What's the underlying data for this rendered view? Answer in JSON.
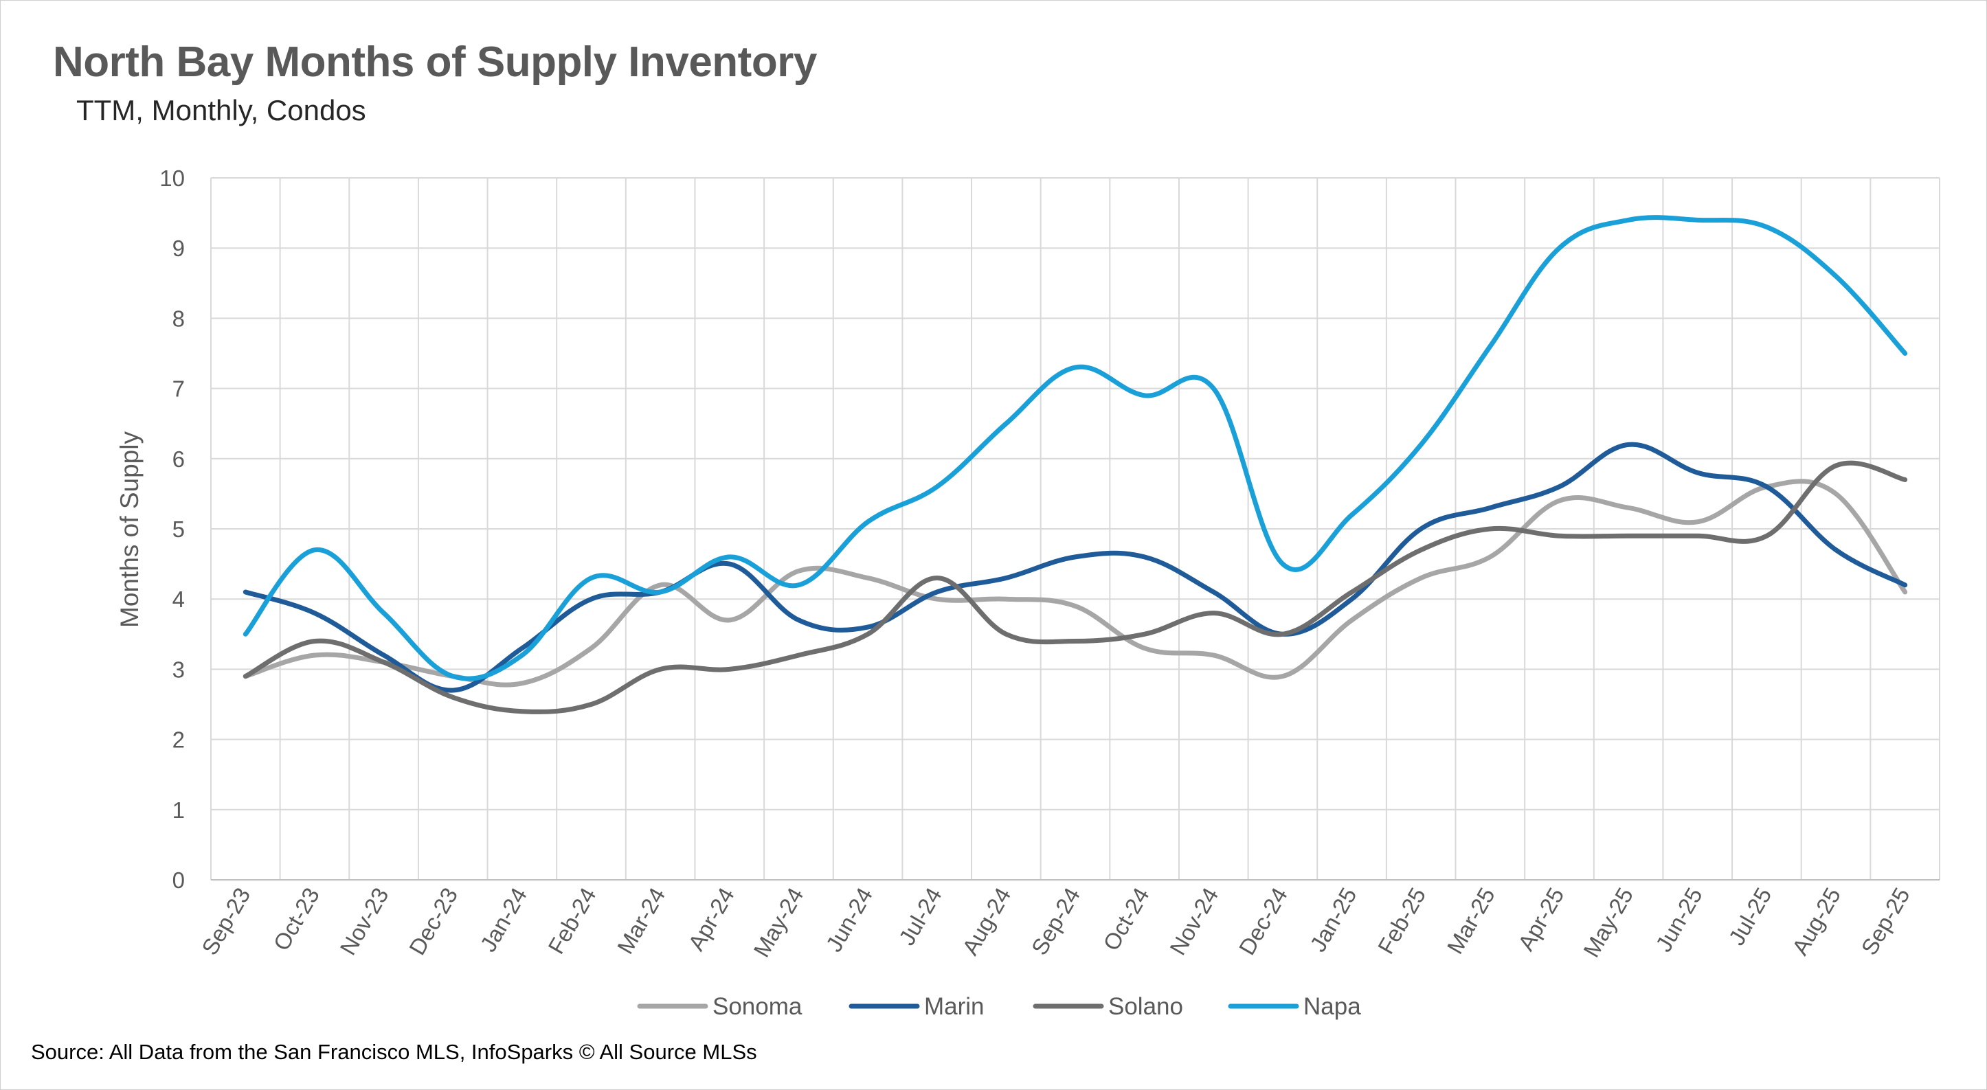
{
  "chart_data": {
    "type": "line",
    "title": "North Bay Months of Supply Inventory",
    "subtitle": "TTM, Monthly, Condos",
    "ylabel": "Months of Supply",
    "xlabel": "",
    "ylim": [
      0,
      10
    ],
    "yticks": [
      "0",
      "1",
      "2",
      "3",
      "4",
      "5",
      "6",
      "7",
      "8",
      "9",
      "10"
    ],
    "grid": true,
    "legend_position": "bottom",
    "categories": [
      "Sep-23",
      "Oct-23",
      "Nov-23",
      "Dec-23",
      "Jan-24",
      "Feb-24",
      "Mar-24",
      "Apr-24",
      "May-24",
      "Jun-24",
      "Jul-24",
      "Aug-24",
      "Sep-24",
      "Oct-24",
      "Nov-24",
      "Dec-24",
      "Jan-25",
      "Feb-25",
      "Mar-25",
      "Apr-25",
      "May-25",
      "Jun-25",
      "Jul-25",
      "Aug-25",
      "Sep-25"
    ],
    "series": [
      {
        "name": "Sonoma",
        "color": "#a6a6a6",
        "values": [
          2.9,
          3.2,
          3.1,
          2.9,
          2.8,
          3.3,
          4.2,
          3.7,
          4.4,
          4.3,
          4.0,
          4.0,
          3.9,
          3.3,
          3.2,
          2.9,
          3.7,
          4.3,
          4.6,
          5.4,
          5.3,
          5.1,
          5.6,
          5.5,
          4.1
        ]
      },
      {
        "name": "Marin",
        "color": "#1f5b99",
        "values": [
          4.1,
          3.8,
          3.2,
          2.7,
          3.3,
          4.0,
          4.1,
          4.5,
          3.7,
          3.6,
          4.1,
          4.3,
          4.6,
          4.6,
          4.1,
          3.5,
          4.0,
          5.0,
          5.3,
          5.6,
          6.2,
          5.8,
          5.6,
          4.7,
          4.2
        ]
      },
      {
        "name": "Solano",
        "color": "#6e6e6e",
        "values": [
          2.9,
          3.4,
          3.1,
          2.6,
          2.4,
          2.5,
          3.0,
          3.0,
          3.2,
          3.5,
          4.3,
          3.5,
          3.4,
          3.5,
          3.8,
          3.5,
          4.1,
          4.7,
          5.0,
          4.9,
          4.9,
          4.9,
          4.9,
          5.9,
          5.7
        ]
      },
      {
        "name": "Napa",
        "color": "#1aa0d8",
        "values": [
          3.5,
          4.7,
          3.8,
          2.9,
          3.2,
          4.3,
          4.1,
          4.6,
          4.2,
          5.1,
          5.6,
          6.5,
          7.3,
          6.9,
          7.0,
          4.5,
          5.2,
          6.2,
          7.6,
          9.0,
          9.4,
          9.4,
          9.3,
          8.6,
          7.5
        ]
      }
    ]
  },
  "source": "Source: All Data from the San Francisco MLS, InfoSparks © All Source MLSs"
}
